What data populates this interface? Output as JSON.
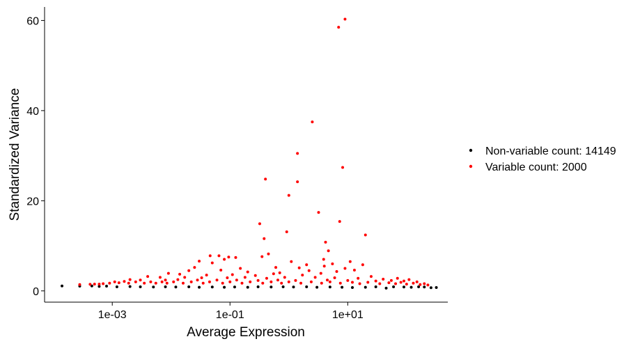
{
  "chart_data": {
    "type": "scatter",
    "xlabel": "Average Expression",
    "ylabel": "Standardized Variance",
    "x_scale": "log10",
    "xlim": [
      7.08e-05,
      501
    ],
    "ylim": [
      -2.5,
      63
    ],
    "x_ticks": [
      {
        "value": 0.001,
        "label": "1e-03"
      },
      {
        "value": 0.1,
        "label": "1e-01"
      },
      {
        "value": 10,
        "label": "1e+01"
      }
    ],
    "y_ticks": [
      {
        "value": 0,
        "label": "0"
      },
      {
        "value": 20,
        "label": "20"
      },
      {
        "value": 40,
        "label": "40"
      },
      {
        "value": 60,
        "label": "60"
      }
    ],
    "grid": false,
    "legend_position": "right",
    "series": [
      {
        "name": "Non-variable count: 14149",
        "color": "#000000",
        "points": [
          [
            0.00014,
            1.1
          ],
          [
            0.00028,
            1.05
          ],
          [
            0.00045,
            1.1
          ],
          [
            0.0006,
            1.0
          ],
          [
            0.0008,
            1.05
          ],
          [
            0.0012,
            0.9
          ],
          [
            0.002,
            0.95
          ],
          [
            0.003,
            0.9
          ],
          [
            0.005,
            0.85
          ],
          [
            0.008,
            0.9
          ],
          [
            0.012,
            0.85
          ],
          [
            0.02,
            0.9
          ],
          [
            0.03,
            0.8
          ],
          [
            0.05,
            0.85
          ],
          [
            0.08,
            0.8
          ],
          [
            0.12,
            0.85
          ],
          [
            0.2,
            0.8
          ],
          [
            0.3,
            0.9
          ],
          [
            0.5,
            0.85
          ],
          [
            0.8,
            0.9
          ],
          [
            1.2,
            0.85
          ],
          [
            2.0,
            0.9
          ],
          [
            3.0,
            0.8
          ],
          [
            5.0,
            0.85
          ],
          [
            8.0,
            0.8
          ],
          [
            12.0,
            0.75
          ],
          [
            20.0,
            0.8
          ],
          [
            30.0,
            0.9
          ],
          [
            45.0,
            0.6
          ],
          [
            60.0,
            0.9
          ],
          [
            90.0,
            0.85
          ],
          [
            120.0,
            0.8
          ],
          [
            160.0,
            0.9
          ],
          [
            200.0,
            0.85
          ],
          [
            260.0,
            0.7
          ],
          [
            320.0,
            0.75
          ]
        ]
      },
      {
        "name": "Variable count: 2000",
        "color": "#ff0000",
        "points": [
          [
            7.0,
            58.5
          ],
          [
            9.0,
            60.3
          ],
          [
            2.5,
            37.5
          ],
          [
            1.4,
            30.5
          ],
          [
            8.2,
            27.4
          ],
          [
            0.4,
            24.8
          ],
          [
            1.4,
            24.2
          ],
          [
            1.0,
            21.2
          ],
          [
            3.2,
            17.4
          ],
          [
            7.3,
            15.4
          ],
          [
            0.32,
            14.9
          ],
          [
            0.92,
            13.1
          ],
          [
            20.0,
            12.4
          ],
          [
            0.38,
            11.6
          ],
          [
            4.2,
            10.8
          ],
          [
            4.7,
            8.9
          ],
          [
            0.046,
            7.8
          ],
          [
            0.065,
            7.8
          ],
          [
            0.095,
            7.5
          ],
          [
            0.125,
            7.4
          ],
          [
            0.45,
            8.2
          ],
          [
            3.9,
            7.0
          ],
          [
            0.03,
            6.6
          ],
          [
            0.05,
            6.2
          ],
          [
            0.08,
            7.0
          ],
          [
            0.35,
            7.6
          ],
          [
            1.1,
            6.5
          ],
          [
            2.0,
            5.8
          ],
          [
            11.0,
            6.5
          ],
          [
            5.5,
            6.0
          ],
          [
            18.0,
            5.8
          ],
          [
            0.025,
            5.2
          ],
          [
            0.15,
            5.0
          ],
          [
            0.6,
            5.2
          ],
          [
            1.5,
            5.1
          ],
          [
            4.0,
            5.5
          ],
          [
            9.0,
            5.0
          ],
          [
            0.02,
            4.5
          ],
          [
            0.07,
            4.6
          ],
          [
            0.2,
            4.2
          ],
          [
            0.7,
            4.0
          ],
          [
            2.2,
            4.5
          ],
          [
            6.5,
            4.3
          ],
          [
            13.0,
            4.6
          ],
          [
            0.009,
            3.9
          ],
          [
            0.014,
            3.7
          ],
          [
            0.04,
            3.5
          ],
          [
            0.11,
            3.6
          ],
          [
            0.27,
            3.4
          ],
          [
            0.55,
            3.8
          ],
          [
            1.7,
            3.5
          ],
          [
            3.5,
            3.9
          ],
          [
            25.0,
            3.2
          ],
          [
            0.004,
            3.2
          ],
          [
            0.0065,
            3.0
          ],
          [
            0.017,
            3.0
          ],
          [
            0.033,
            2.9
          ],
          [
            0.09,
            2.9
          ],
          [
            0.18,
            3.0
          ],
          [
            0.42,
            2.8
          ],
          [
            0.85,
            3.0
          ],
          [
            2.8,
            3.0
          ],
          [
            6.0,
            2.9
          ],
          [
            15.0,
            2.8
          ],
          [
            40.0,
            2.6
          ],
          [
            70.0,
            2.8
          ],
          [
            110.0,
            2.5
          ],
          [
            0.002,
            2.5
          ],
          [
            0.003,
            2.4
          ],
          [
            0.008,
            2.4
          ],
          [
            0.013,
            2.5
          ],
          [
            0.028,
            2.4
          ],
          [
            0.06,
            2.4
          ],
          [
            0.13,
            2.4
          ],
          [
            0.3,
            2.3
          ],
          [
            0.65,
            2.4
          ],
          [
            1.3,
            2.3
          ],
          [
            4.5,
            2.4
          ],
          [
            10.0,
            2.3
          ],
          [
            30.0,
            2.2
          ],
          [
            55.0,
            2.3
          ],
          [
            90.0,
            2.2
          ],
          [
            150.0,
            2.0
          ],
          [
            0.0011,
            2.0
          ],
          [
            0.0016,
            2.1
          ],
          [
            0.0025,
            2.0
          ],
          [
            0.0045,
            2.0
          ],
          [
            0.007,
            2.0
          ],
          [
            0.011,
            2.0
          ],
          [
            0.022,
            2.0
          ],
          [
            0.045,
            2.0
          ],
          [
            0.1,
            2.0
          ],
          [
            0.22,
            2.0
          ],
          [
            0.5,
            2.0
          ],
          [
            1.0,
            2.0
          ],
          [
            2.4,
            2.0
          ],
          [
            5.0,
            2.0
          ],
          [
            12.0,
            1.9
          ],
          [
            22.0,
            1.9
          ],
          [
            50.0,
            1.8
          ],
          [
            80.0,
            1.9
          ],
          [
            130.0,
            1.7
          ],
          [
            200.0,
            1.6
          ],
          [
            0.0005,
            1.5
          ],
          [
            0.0007,
            1.6
          ],
          [
            0.0009,
            1.7
          ],
          [
            0.0013,
            1.8
          ],
          [
            0.0019,
            1.7
          ],
          [
            0.0035,
            1.7
          ],
          [
            0.0055,
            1.7
          ],
          [
            0.0085,
            1.7
          ],
          [
            0.016,
            1.7
          ],
          [
            0.035,
            1.7
          ],
          [
            0.075,
            1.7
          ],
          [
            0.16,
            1.7
          ],
          [
            0.36,
            1.7
          ],
          [
            0.75,
            1.7
          ],
          [
            1.6,
            1.7
          ],
          [
            3.6,
            1.7
          ],
          [
            7.5,
            1.7
          ],
          [
            16.0,
            1.6
          ],
          [
            35.0,
            1.6
          ],
          [
            65.0,
            1.6
          ],
          [
            100.0,
            1.5
          ],
          [
            170.0,
            1.4
          ],
          [
            230.0,
            1.3
          ],
          [
            0.00028,
            1.4
          ],
          [
            0.00042,
            1.45
          ],
          [
            0.0006,
            1.5
          ]
        ]
      }
    ]
  }
}
